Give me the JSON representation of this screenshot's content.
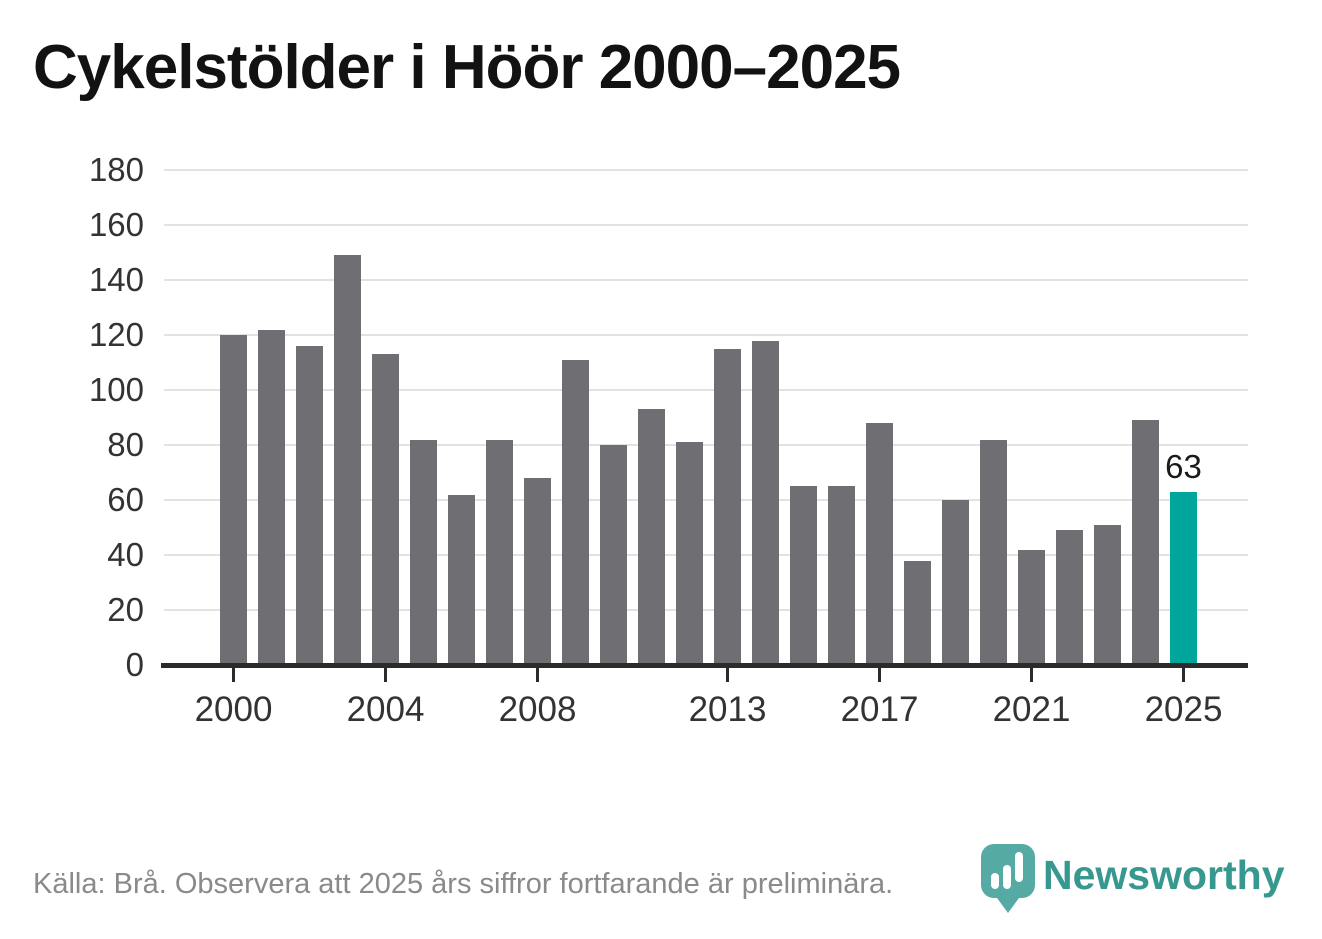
{
  "title": "Cykelstölder i Höör 2000–2025",
  "chart_data": {
    "type": "bar",
    "categories": [
      2000,
      2001,
      2002,
      2003,
      2004,
      2005,
      2006,
      2007,
      2008,
      2009,
      2010,
      2011,
      2012,
      2013,
      2014,
      2015,
      2016,
      2017,
      2018,
      2019,
      2020,
      2021,
      2022,
      2023,
      2024,
      2025
    ],
    "values": [
      120,
      122,
      116,
      149,
      113,
      82,
      62,
      82,
      68,
      111,
      80,
      93,
      81,
      115,
      118,
      65,
      65,
      88,
      38,
      60,
      82,
      42,
      49,
      51,
      89,
      63
    ],
    "title": "Cykelstölder i Höör 2000–2025",
    "xlabel": "",
    "ylabel": "",
    "ylim": [
      0,
      180
    ],
    "y_ticks": [
      0,
      20,
      40,
      60,
      80,
      100,
      120,
      140,
      160,
      180
    ],
    "x_tick_years": [
      2000,
      2004,
      2008,
      2013,
      2017,
      2021,
      2025
    ],
    "grid": "horizontal",
    "legend": "none",
    "bar_color": "#6e6e73",
    "highlight": {
      "year": 2025,
      "value": 63,
      "label": "63",
      "color": "#00a59b"
    }
  },
  "footer": {
    "source_note": "Källa: Brå. Observera att 2025 års siffror fortfarande är preliminära."
  },
  "branding": {
    "wordmark": "Newsworthy",
    "logo_icon": "newsworthy-pin-barchart-icon",
    "teal": "#37988f",
    "pin_color": "#47a39c"
  },
  "colors": {
    "background": "#ffffff",
    "gridline": "#e2e2e2",
    "axis": "#2b2b2b",
    "axis_text": "#333333",
    "title_text": "#121212",
    "footer_text": "#8a8a8a"
  }
}
